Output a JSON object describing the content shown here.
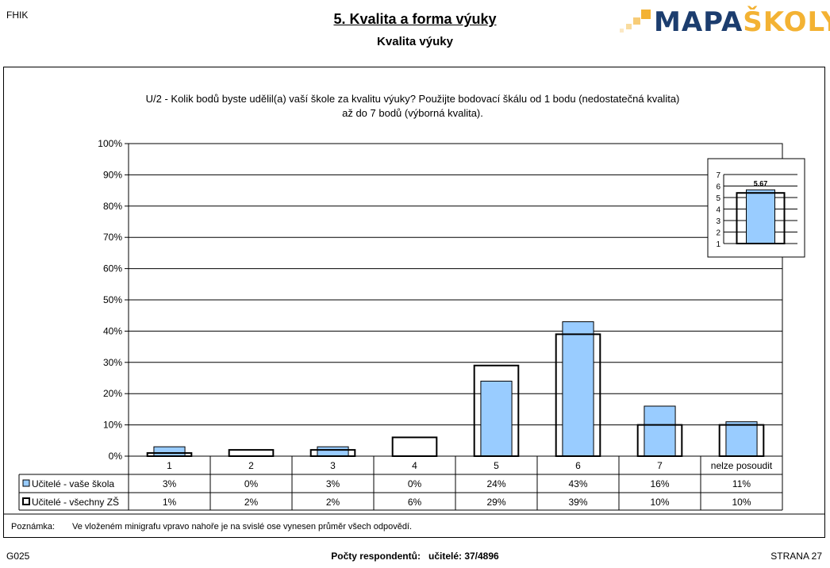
{
  "header": {
    "left_code": "FHIK",
    "title": "5. Kvalita a forma výuky",
    "subtitle": "Kvalita výuky",
    "logo_part1": "MAPA",
    "logo_part2": "ŠKOLY",
    "colors": {
      "logo_dark": "#1c3d6e",
      "logo_orange": "#f3b233"
    }
  },
  "question": {
    "line1": "U/2 - Kolik bodů byste udělil(a) vaší škole za kvalitu výuky?  Použijte bodovací škálu od 1 bodu (nedostatečná kvalita)",
    "line2": "až do 7 bodů (výborná kvalita)."
  },
  "chart_data": [
    {
      "type": "bar",
      "categories": [
        "1",
        "2",
        "3",
        "4",
        "5",
        "6",
        "7",
        "nelze posoudit"
      ],
      "series": [
        {
          "name": "Učitelé - vaše škola",
          "values": [
            3,
            0,
            3,
            0,
            24,
            43,
            16,
            11
          ],
          "labels": [
            "3%",
            "0%",
            "3%",
            "0%",
            "24%",
            "43%",
            "16%",
            "11%"
          ],
          "color": "#99ccff"
        },
        {
          "name": "Učitelé - všechny ZŠ",
          "values": [
            1,
            2,
            2,
            6,
            29,
            39,
            10,
            10
          ],
          "labels": [
            "1%",
            "2%",
            "2%",
            "6%",
            "29%",
            "39%",
            "10%",
            "10%"
          ],
          "color": "none"
        }
      ],
      "ylim": [
        0,
        100
      ],
      "yticks": [
        "0%",
        "10%",
        "20%",
        "30%",
        "40%",
        "50%",
        "60%",
        "70%",
        "80%",
        "90%",
        "100%"
      ],
      "grid": true,
      "legend": "table-below"
    },
    {
      "type": "bar",
      "categories": [
        ""
      ],
      "series": [
        {
          "name": "Učitelé - vaše škola",
          "values": [
            5.67
          ],
          "color": "#99ccff"
        },
        {
          "name": "Učitelé - všechny ZŠ",
          "values": [
            5.4
          ],
          "color": "none"
        }
      ],
      "value_label": "5.67",
      "ylim": [
        1,
        7
      ],
      "yticks": [
        "1",
        "2",
        "3",
        "4",
        "5",
        "6",
        "7"
      ],
      "grid": true,
      "legend": "none"
    }
  ],
  "note": {
    "label": "Poznámka:",
    "text": "Ve vloženém minigrafu vpravo nahoře je na svislé ose vynesen průměr všech odpovědí."
  },
  "footer": {
    "left": "G025",
    "center_label": "Počty respondentů:",
    "center_value": "učitelé: 37/4896",
    "right": "STRANA  27"
  }
}
